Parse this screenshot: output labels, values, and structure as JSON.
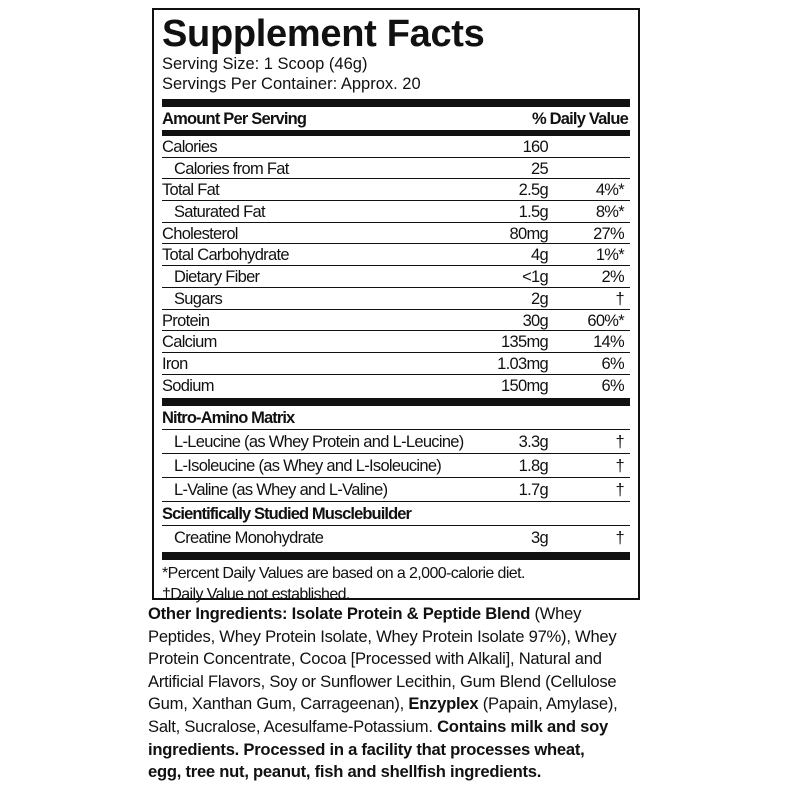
{
  "title": "Supplement Facts",
  "serving_size": "Serving Size: 1 Scoop (46g)",
  "servings_per_container": "Servings Per Container: Approx. 20",
  "header": {
    "amount": "Amount Per Serving",
    "dv": "% Daily Value"
  },
  "nutrients": [
    {
      "name": "Calories",
      "amount": "160",
      "dv": "",
      "indent": false
    },
    {
      "name": "Calories from Fat",
      "amount": "25",
      "dv": "",
      "indent": true
    },
    {
      "name": "Total Fat",
      "amount": "2.5g",
      "dv": "4%*",
      "indent": false
    },
    {
      "name": "Saturated Fat",
      "amount": "1.5g",
      "dv": "8%*",
      "indent": true
    },
    {
      "name": "Cholesterol",
      "amount": "80mg",
      "dv": "27%",
      "indent": false
    },
    {
      "name": "Total Carbohydrate",
      "amount": "4g",
      "dv": "1%*",
      "indent": false
    },
    {
      "name": "Dietary Fiber",
      "amount": "<1g",
      "dv": "2%",
      "indent": true
    },
    {
      "name": "Sugars",
      "amount": "2g",
      "dv": "†",
      "indent": true
    },
    {
      "name": "Protein",
      "amount": "30g",
      "dv": "60%*",
      "indent": false
    },
    {
      "name": "Calcium",
      "amount": "135mg",
      "dv": "14%",
      "indent": false
    },
    {
      "name": "Iron",
      "amount": "1.03mg",
      "dv": "6%",
      "indent": false
    },
    {
      "name": "Sodium",
      "amount": "150mg",
      "dv": "6%",
      "indent": false
    }
  ],
  "sections": [
    {
      "title": "Nitro-Amino Matrix",
      "items": [
        {
          "name": "L-Leucine (as Whey Protein and L-Leucine)",
          "amount": "3.3g",
          "dv": "†"
        },
        {
          "name": "L-Isoleucine (as Whey and L-Isoleucine)",
          "amount": "1.8g",
          "dv": "†"
        },
        {
          "name": "L-Valine (as Whey and L-Valine)",
          "amount": "1.7g",
          "dv": "†"
        }
      ]
    },
    {
      "title": "Scientifically Studied Musclebuilder",
      "items": [
        {
          "name": "Creatine Monohydrate",
          "amount": "3g",
          "dv": "†"
        }
      ]
    }
  ],
  "footnotes": [
    "*Percent Daily Values are based on a 2,000-calorie diet.",
    "†Daily Value not established."
  ],
  "ingredients_lines": [
    [
      {
        "t": "Other Ingredients: Isolate Protein & Peptide Blend",
        "b": true
      },
      {
        "t": " (Whey",
        "b": false
      }
    ],
    [
      {
        "t": "Peptides, Whey Protein Isolate, Whey Protein Isolate 97%), Whey",
        "b": false
      }
    ],
    [
      {
        "t": "Protein Concentrate, Cocoa [Processed with Alkali], Natural and",
        "b": false
      }
    ],
    [
      {
        "t": "Artificial Flavors, Soy or Sunflower Lecithin, Gum Blend (Cellulose",
        "b": false
      }
    ],
    [
      {
        "t": "Gum, Xanthan Gum, Carrageenan), ",
        "b": false
      },
      {
        "t": "Enzyplex",
        "b": true
      },
      {
        "t": " (Papain, Amylase),",
        "b": false
      }
    ],
    [
      {
        "t": "Salt, Sucralose, Acesulfame-Potassium. ",
        "b": false
      },
      {
        "t": "Contains milk and soy",
        "b": true
      }
    ],
    [
      {
        "t": "ingredients. Processed in a facility that processes wheat,",
        "b": true
      }
    ],
    [
      {
        "t": "egg, tree nut, peanut, fish and shellfish ingredients.",
        "b": true
      }
    ]
  ]
}
